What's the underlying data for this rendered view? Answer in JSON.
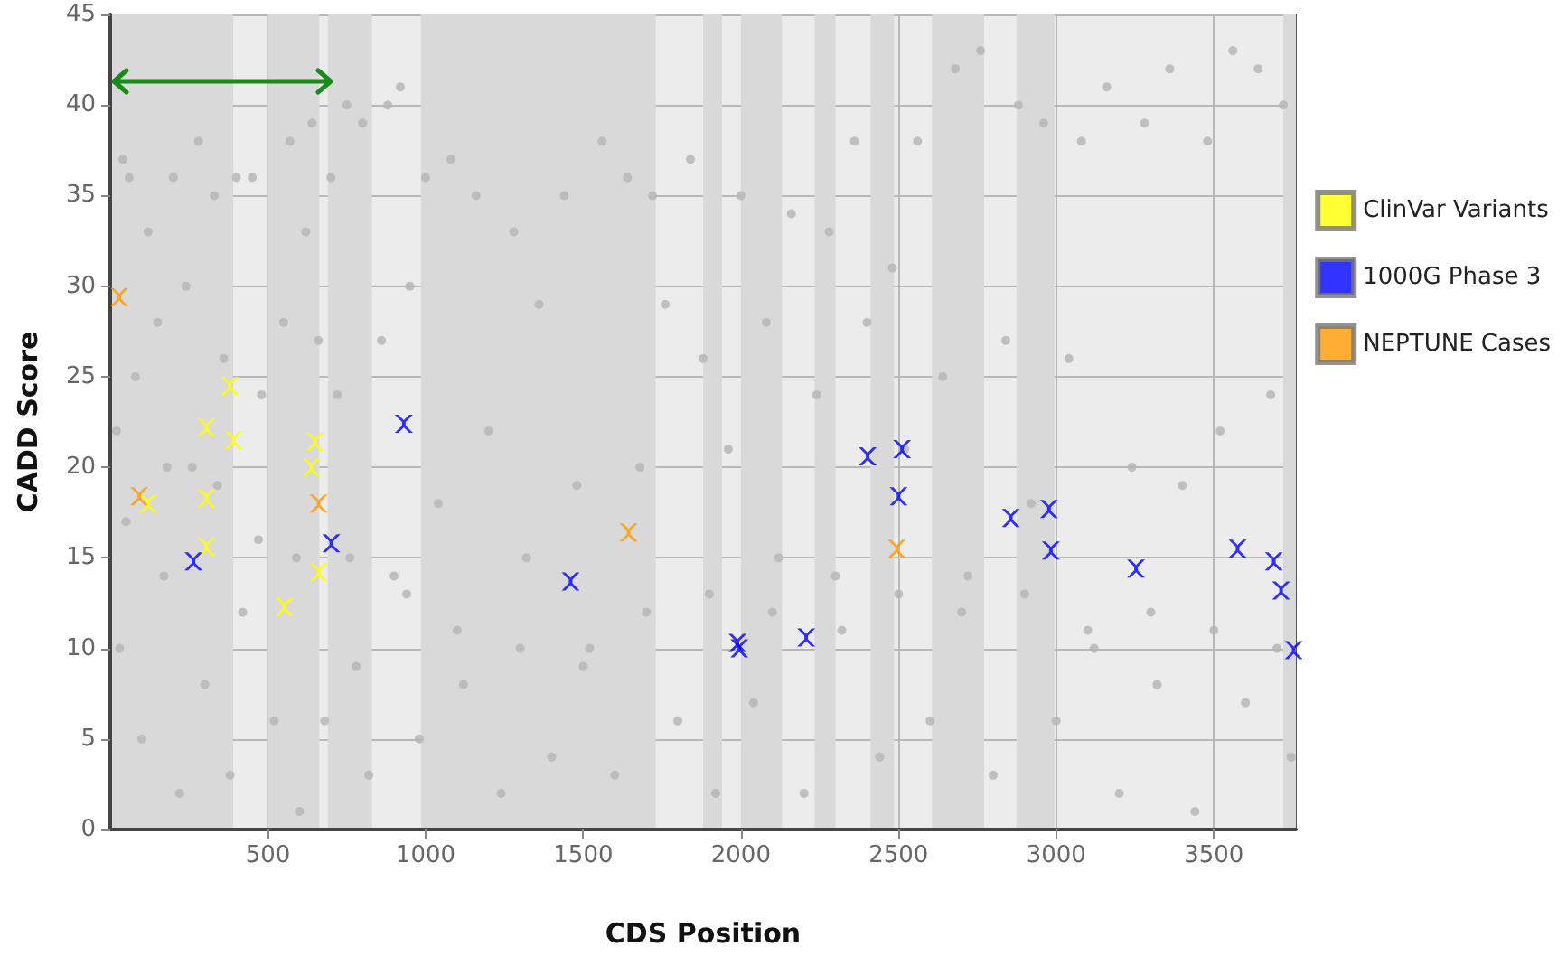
{
  "chart_data": {
    "type": "scatter",
    "xlabel": "CDS Position",
    "ylabel": "CADD Score",
    "xlim": [
      0,
      3760
    ],
    "xticks": [
      500,
      1000,
      1500,
      2000,
      2500,
      3000,
      3500
    ],
    "ylim": [
      0,
      45
    ],
    "yticks": [
      0,
      5,
      10,
      15,
      20,
      25,
      30,
      35,
      40,
      45
    ],
    "grid": true,
    "legend": "right",
    "marker": "cross",
    "bands": [
      {
        "axis": "x",
        "from": 0,
        "to": 390,
        "color": "#d9d9d9"
      },
      {
        "axis": "x",
        "from": 500,
        "to": 663,
        "color": "#d9d9d9"
      },
      {
        "axis": "x",
        "from": 690,
        "to": 830,
        "color": "#d9d9d9"
      },
      {
        "axis": "x",
        "from": 985,
        "to": 1730,
        "color": "#d9d9d9"
      },
      {
        "axis": "x",
        "from": 1880,
        "to": 1940,
        "color": "#d9d9d9"
      },
      {
        "axis": "x",
        "from": 2000,
        "to": 2130,
        "color": "#d9d9d9"
      },
      {
        "axis": "x",
        "from": 2234,
        "to": 2300,
        "color": "#d9d9d9"
      },
      {
        "axis": "x",
        "from": 2411,
        "to": 2486,
        "color": "#d9d9d9"
      },
      {
        "axis": "x",
        "from": 2606,
        "to": 2771,
        "color": "#d9d9d9"
      },
      {
        "axis": "x",
        "from": 2874,
        "to": 2994,
        "color": "#d9d9d9"
      },
      {
        "axis": "x",
        "from": 3720,
        "to": 3760,
        "color": "#d9d9d9"
      }
    ],
    "series": [
      {
        "color": "#b4b4b4",
        "marker": "circle",
        "x": [
          20,
          30,
          40,
          60,
          80,
          100,
          120,
          150,
          170,
          200,
          220,
          240,
          260,
          280,
          300,
          330,
          360,
          380,
          400,
          420,
          450,
          480,
          520,
          550,
          570,
          600,
          620,
          640,
          660,
          680,
          700,
          720,
          750,
          780,
          800,
          820,
          860,
          880,
          900,
          920,
          950,
          980,
          1000,
          1040,
          1080,
          1120,
          1160,
          1200,
          1240,
          1280,
          1320,
          1360,
          1400,
          1440,
          1480,
          1520,
          1560,
          1600,
          1640,
          1680,
          1720,
          1760,
          1800,
          1840,
          1880,
          1920,
          1960,
          2000,
          2040,
          2080,
          2120,
          2160,
          2200,
          2240,
          2280,
          2320,
          2360,
          2400,
          2440,
          2480,
          2520,
          2560,
          2600,
          2640,
          2680,
          2720,
          2760,
          2800,
          2840,
          2880,
          2920,
          2960,
          3000,
          3040,
          3080,
          3120,
          3160,
          3200,
          3240,
          3280,
          3320,
          3360,
          3400,
          3440,
          3480,
          3520,
          3560,
          3600,
          3640,
          3680,
          3720,
          3745,
          50,
          180,
          340,
          470,
          590,
          760,
          940,
          1100,
          1300,
          1500,
          1700,
          1900,
          2100,
          2300,
          2500,
          2700,
          2900,
          3100,
          3300,
          3500,
          3700
        ],
        "values": [
          22,
          10,
          37,
          36,
          25,
          5,
          33,
          28,
          14,
          36,
          2,
          30,
          20,
          38,
          8,
          35,
          26,
          3,
          36,
          12,
          36,
          24,
          6,
          28,
          38,
          1,
          33,
          39,
          27,
          6,
          36,
          24,
          40,
          9,
          39,
          3,
          27,
          40,
          14,
          41,
          30,
          5,
          36,
          18,
          37,
          8,
          35,
          22,
          2,
          33,
          15,
          29,
          4,
          35,
          19,
          10,
          38,
          3,
          36,
          20,
          35,
          29,
          6,
          37,
          26,
          2,
          21,
          35,
          7,
          28,
          15,
          34,
          2,
          24,
          33,
          11,
          38,
          28,
          4,
          31,
          21,
          38,
          6,
          25,
          42,
          14,
          43,
          3,
          27,
          40,
          18,
          39,
          6,
          26,
          38,
          10,
          41,
          2,
          20,
          39,
          8,
          42,
          19,
          1,
          38,
          22,
          43,
          7,
          42,
          24,
          40,
          4,
          17,
          20,
          19,
          16,
          15,
          15,
          13,
          11,
          10,
          9,
          12,
          13,
          12,
          14,
          13,
          12,
          13,
          11,
          12,
          11,
          10
        ]
      },
      {
        "name": "ClinVar Variants",
        "color": "#ffff00",
        "x": [
          120,
          305,
          379,
          391,
          305,
          305,
          552,
          649,
          638,
          661
        ],
        "values": [
          18.0,
          22.2,
          24.5,
          21.5,
          18.3,
          15.6,
          12.3,
          21.4,
          20.0,
          14.2
        ]
      },
      {
        "name": "1000G Phase 3",
        "color": "#0000ff",
        "x": [
          264,
          701,
          931,
          1460,
          1989,
          1995,
          2207,
          2402,
          2511,
          2500,
          2856,
          2977,
          2983,
          3253,
          3575,
          3690,
          3713,
          3753
        ],
        "values": [
          14.8,
          15.8,
          22.4,
          13.7,
          10.3,
          10.0,
          10.6,
          20.6,
          21.0,
          18.4,
          17.2,
          17.7,
          15.4,
          14.4,
          15.5,
          14.8,
          13.2,
          9.9
        ]
      },
      {
        "name": "NEPTUNE Cases",
        "color": "#ff9900",
        "x": [
          29,
          92,
          661,
          1644,
          2494
        ],
        "values": [
          29.4,
          18.4,
          18.0,
          16.4,
          15.5
        ]
      }
    ]
  }
}
